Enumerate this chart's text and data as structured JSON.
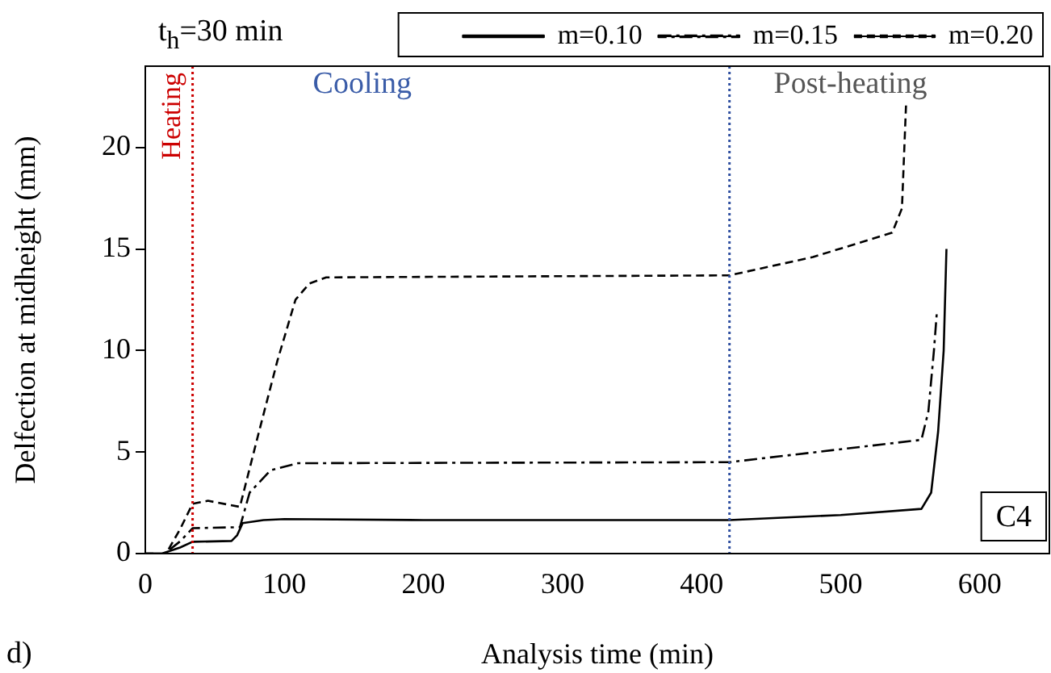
{
  "chart_data": {
    "type": "line",
    "legend_title": "t$_{h}$=30 min",
    "xlabel": "Analysis time (min)",
    "ylabel": "Delfection at midheight (mm)",
    "xlim": [
      0,
      650
    ],
    "xticks": [
      0,
      100,
      200,
      300,
      400,
      500,
      600
    ],
    "ylim": [
      0,
      24
    ],
    "yticks": [
      0,
      5,
      10,
      15,
      20
    ],
    "grid": false,
    "legend": "top right",
    "marker": "none",
    "series": [
      {
        "name": "m=0.10",
        "color": "#000000",
        "line_style": "solid",
        "x": [
          0,
          12,
          25,
          34,
          62,
          66,
          70,
          85,
          100,
          200,
          420,
          500,
          558,
          565,
          570,
          574,
          576
        ],
        "values": [
          0,
          0,
          0.3,
          0.58,
          0.62,
          0.9,
          1.5,
          1.65,
          1.7,
          1.65,
          1.65,
          1.9,
          2.2,
          3,
          6,
          10,
          15
        ]
      },
      {
        "name": "m=0.15",
        "color": "#000000",
        "line_style": "dashdot",
        "x": [
          0,
          14,
          25,
          34,
          68,
          75,
          90,
          110,
          420,
          558,
          563,
          567,
          569
        ],
        "values": [
          0,
          0,
          0.6,
          1.25,
          1.3,
          3,
          4.1,
          4.45,
          4.5,
          5.6,
          7,
          10,
          11.8
        ]
      },
      {
        "name": "m=0.20",
        "color": "#000000",
        "line_style": "dashed",
        "x": [
          0,
          15,
          25,
          34,
          45,
          68,
          81,
          95,
          108,
          118,
          130,
          420,
          480,
          537,
          544,
          547
        ],
        "values": [
          0,
          0,
          1.2,
          2.45,
          2.6,
          2.3,
          5.8,
          9.5,
          12.5,
          13.3,
          13.6,
          13.7,
          14.6,
          15.8,
          17,
          22.2
        ]
      }
    ],
    "ref_lines": [
      {
        "axis": "x",
        "value": 34,
        "label": "Heating",
        "color": "#cc0000",
        "line_style": "dotted"
      },
      {
        "axis": "x",
        "value": 420,
        "label": null,
        "color": "#2f4fa0",
        "line_style": "dotted"
      }
    ],
    "annotations": [
      "Cooling",
      "Post-heating",
      "C4",
      "d)"
    ]
  }
}
